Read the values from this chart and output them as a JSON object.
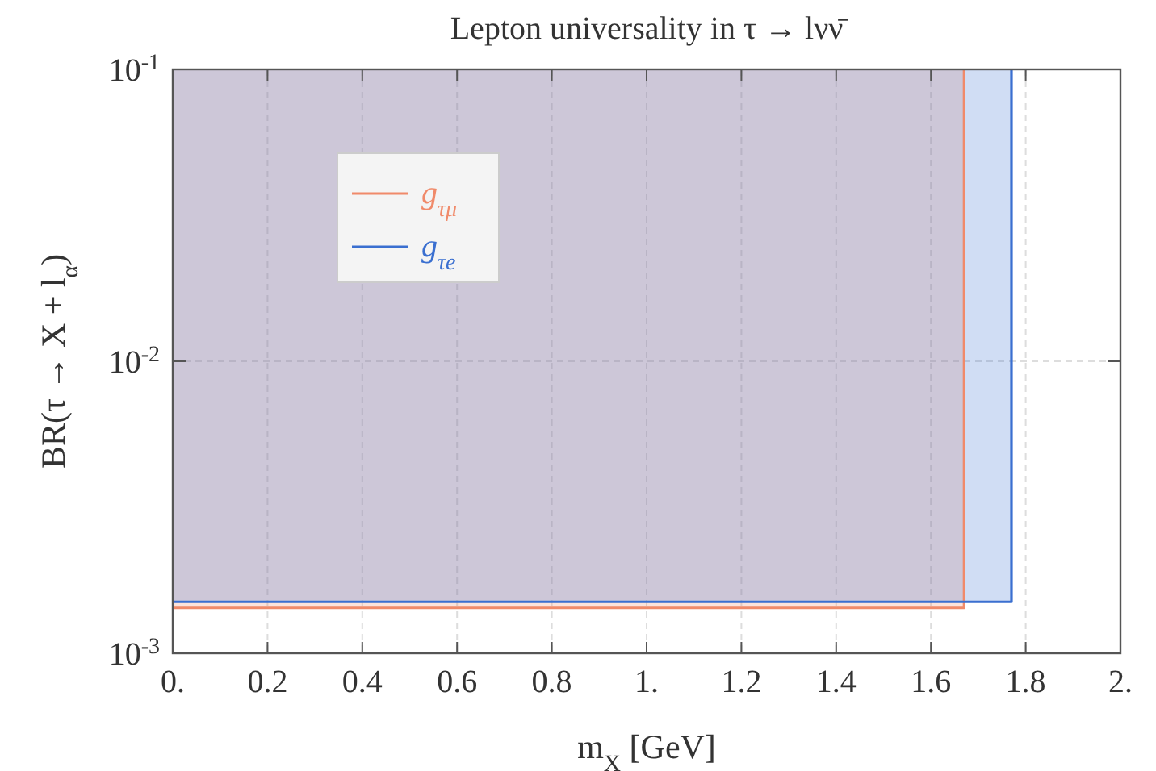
{
  "chart_data": {
    "type": "line",
    "title": "Lepton universality in τ → lνν̄",
    "xlabel": "m$_{X}$ [GeV]",
    "ylabel": "BR(τ → X + l$_{α}$)",
    "log": "y",
    "grid": true,
    "legend": "top left",
    "marker": "none",
    "line_style": "solid",
    "xlim": [
      0,
      2
    ],
    "ylim": [
      0.001,
      0.1
    ],
    "xticks": [
      {
        "value": 0,
        "label": "0."
      },
      0.2,
      0.4,
      0.6,
      0.8,
      {
        "value": 1,
        "label": "1."
      },
      1.2,
      1.4,
      1.6,
      1.8,
      {
        "value": 2,
        "label": "2."
      }
    ],
    "yticks": [
      {
        "value": 0.001,
        "label": "10$^{-3}$"
      },
      {
        "value": 0.01,
        "label": "10$^{-2}$"
      },
      {
        "value": 0.1,
        "label": "10$^{-1}$"
      }
    ],
    "series": [
      {
        "name": "g$_{τμ}$",
        "color": "#f08a6a",
        "x": [
          0,
          1.67,
          1.67
        ],
        "values": [
          0.00143,
          0.00143,
          0.1
        ],
        "lower": [
          0.00143,
          0.00143,
          0.1
        ],
        "upper": [
          0.1,
          0.1,
          0.1
        ]
      },
      {
        "name": "g$_{τe}$",
        "color": "#3a6fd0",
        "x": [
          0,
          1.77,
          1.77
        ],
        "values": [
          0.0015,
          0.0015,
          0.1
        ],
        "lower": [
          0.0015,
          0.0015,
          0.1
        ],
        "upper": [
          0.1,
          0.1,
          0.1
        ]
      }
    ]
  }
}
